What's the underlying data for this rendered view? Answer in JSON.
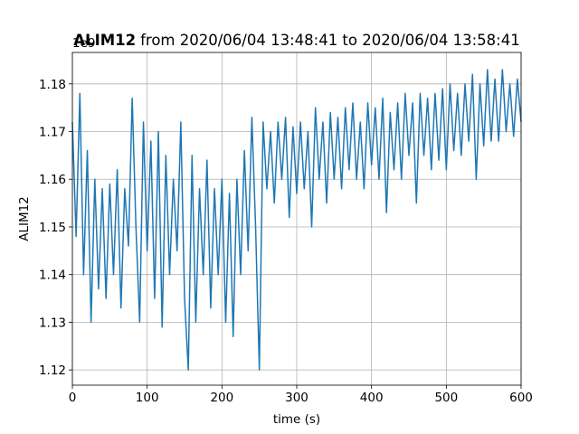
{
  "chart_data": {
    "type": "line",
    "title": {
      "name": "ALIM12",
      "range": "from 2020/06/04 13:48:41 to 2020/06/04 13:58:41"
    },
    "x_label": "time (s)",
    "y_label": "ALIM12",
    "y_offset": "1e9",
    "grid": true,
    "xlim": [
      0,
      600
    ],
    "ylim": [
      1.1168,
      1.1866
    ],
    "xticks": [
      0,
      100,
      200,
      300,
      400,
      500,
      600
    ],
    "yticks": [
      1.12,
      1.13,
      1.14,
      1.15,
      1.16,
      1.17,
      1.18
    ],
    "x": [
      0,
      5,
      10,
      15,
      20,
      25,
      30,
      35,
      40,
      45,
      50,
      55,
      60,
      65,
      70,
      75,
      80,
      85,
      90,
      95,
      100,
      105,
      110,
      115,
      120,
      125,
      130,
      135,
      140,
      145,
      150,
      155,
      160,
      165,
      170,
      175,
      180,
      185,
      190,
      195,
      200,
      205,
      210,
      215,
      220,
      225,
      230,
      235,
      240,
      245,
      250,
      255,
      260,
      265,
      270,
      275,
      280,
      285,
      290,
      295,
      300,
      305,
      310,
      315,
      320,
      325,
      330,
      335,
      340,
      345,
      350,
      355,
      360,
      365,
      370,
      375,
      380,
      385,
      390,
      395,
      400,
      405,
      410,
      415,
      420,
      425,
      430,
      435,
      440,
      445,
      450,
      455,
      460,
      465,
      470,
      475,
      480,
      485,
      490,
      495,
      500,
      505,
      510,
      515,
      520,
      525,
      530,
      535,
      540,
      545,
      550,
      555,
      560,
      565,
      570,
      575,
      580,
      585,
      590,
      595,
      600
    ],
    "series": [
      {
        "name": "ALIM12",
        "color": "#1f77b4",
        "values": [
          1.172,
          1.148,
          1.178,
          1.14,
          1.166,
          1.13,
          1.16,
          1.137,
          1.158,
          1.135,
          1.159,
          1.14,
          1.162,
          1.133,
          1.158,
          1.146,
          1.177,
          1.15,
          1.13,
          1.172,
          1.145,
          1.168,
          1.135,
          1.17,
          1.129,
          1.165,
          1.14,
          1.16,
          1.145,
          1.172,
          1.135,
          1.12,
          1.165,
          1.13,
          1.158,
          1.14,
          1.164,
          1.133,
          1.158,
          1.14,
          1.16,
          1.13,
          1.157,
          1.127,
          1.16,
          1.14,
          1.166,
          1.145,
          1.173,
          1.15,
          1.12,
          1.172,
          1.158,
          1.17,
          1.155,
          1.172,
          1.16,
          1.173,
          1.152,
          1.171,
          1.157,
          1.172,
          1.158,
          1.17,
          1.15,
          1.175,
          1.16,
          1.172,
          1.155,
          1.174,
          1.16,
          1.173,
          1.158,
          1.175,
          1.162,
          1.176,
          1.16,
          1.172,
          1.158,
          1.176,
          1.163,
          1.175,
          1.16,
          1.177,
          1.153,
          1.174,
          1.162,
          1.176,
          1.16,
          1.178,
          1.165,
          1.176,
          1.155,
          1.178,
          1.165,
          1.177,
          1.162,
          1.178,
          1.164,
          1.179,
          1.162,
          1.18,
          1.166,
          1.178,
          1.165,
          1.18,
          1.168,
          1.182,
          1.16,
          1.18,
          1.167,
          1.183,
          1.168,
          1.181,
          1.168,
          1.183,
          1.17,
          1.18,
          1.169,
          1.181,
          1.172
        ]
      }
    ]
  }
}
